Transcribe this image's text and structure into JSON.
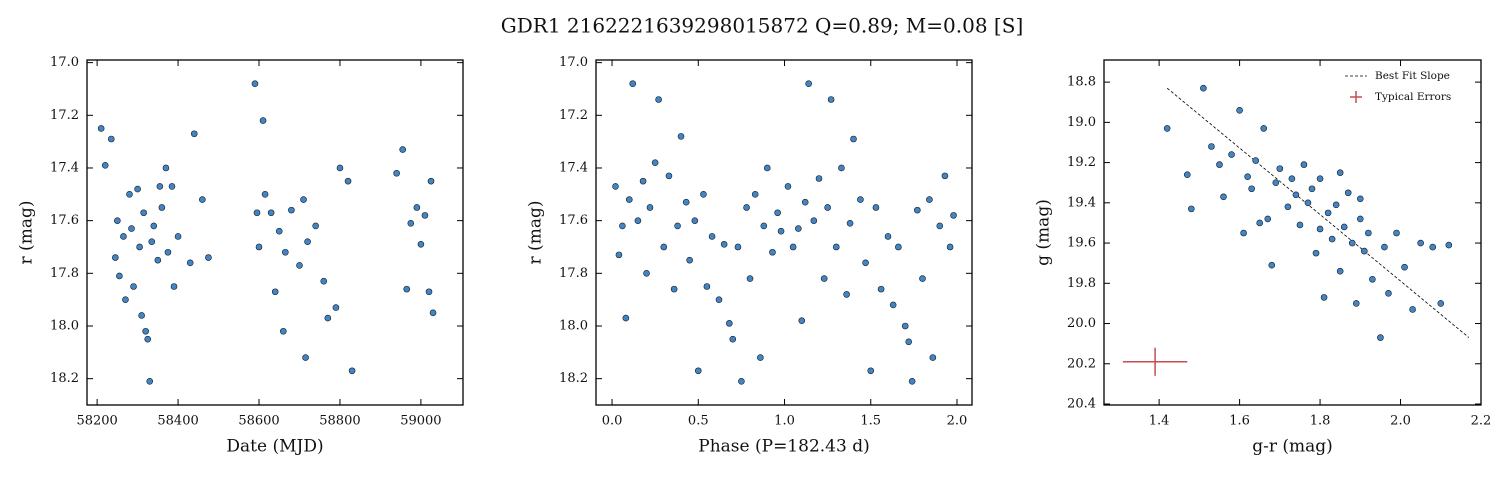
{
  "title": "GDR1 2162221639298015872  Q=0.89; M=0.08 [S]",
  "chart_data": [
    {
      "type": "scatter",
      "xlabel": "Date (MJD)",
      "ylabel": "r (mag)",
      "xlim": [
        58175,
        59104
      ],
      "ylim": [
        18.3,
        16.99
      ],
      "inverted_y": true,
      "xticks": [
        58200,
        58400,
        58600,
        58800,
        59000
      ],
      "yticks": [
        {
          "value": 17,
          "label": "17.0"
        },
        17.2,
        17.4,
        17.6,
        17.8,
        {
          "value": 18,
          "label": "18.0"
        },
        18.2
      ],
      "series": [
        {
          "color": "#3f85c8",
          "x": [
            58210,
            58220,
            58235,
            58245,
            58250,
            58255,
            58265,
            58270,
            58280,
            58285,
            58290,
            58300,
            58305,
            58310,
            58315,
            58320,
            58325,
            58330,
            58335,
            58340,
            58350,
            58355,
            58360,
            58370,
            58375,
            58385,
            58390,
            58400,
            58430,
            58440,
            58460,
            58475,
            58590,
            58595,
            58600,
            58610,
            58615,
            58630,
            58640,
            58650,
            58660,
            58665,
            58680,
            58700,
            58710,
            58715,
            58720,
            58740,
            58760,
            58770,
            58790,
            58800,
            58820,
            58830,
            58940,
            58955,
            58965,
            58975,
            58990,
            59000,
            59010,
            59020,
            59030,
            59025
          ],
          "values": [
            17.25,
            17.39,
            17.29,
            17.74,
            17.6,
            17.81,
            17.66,
            17.9,
            17.5,
            17.63,
            17.85,
            17.48,
            17.7,
            17.96,
            17.57,
            18.02,
            18.05,
            18.21,
            17.68,
            17.62,
            17.75,
            17.47,
            17.55,
            17.4,
            17.72,
            17.47,
            17.85,
            17.66,
            17.76,
            17.27,
            17.52,
            17.74,
            17.08,
            17.57,
            17.7,
            17.22,
            17.5,
            17.57,
            17.87,
            17.64,
            18.02,
            17.72,
            17.56,
            17.77,
            17.52,
            18.12,
            17.68,
            17.62,
            17.83,
            17.97,
            17.93,
            17.4,
            17.45,
            18.17,
            17.42,
            17.33,
            17.86,
            17.61,
            17.55,
            17.69,
            17.58,
            17.87,
            17.95,
            17.45
          ]
        }
      ]
    },
    {
      "type": "scatter",
      "xlabel": "Phase (P=182.43 d)",
      "ylabel": "r (mag)",
      "xlim": [
        -0.093,
        2.087
      ],
      "ylim": [
        18.3,
        16.99
      ],
      "inverted_y": true,
      "xticks": [
        {
          "value": 0,
          "label": "0.0"
        },
        0.5,
        {
          "value": 1,
          "label": "1.0"
        },
        1.5,
        {
          "value": 2,
          "label": "2.0"
        }
      ],
      "yticks": [
        {
          "value": 17,
          "label": "17.0"
        },
        17.2,
        17.4,
        17.6,
        17.8,
        {
          "value": 18,
          "label": "18.0"
        },
        18.2
      ],
      "series": [
        {
          "color": "#3f85c8",
          "x": [
            0.02,
            0.04,
            0.06,
            0.08,
            0.1,
            0.12,
            0.15,
            0.18,
            0.2,
            0.22,
            0.25,
            0.27,
            0.3,
            0.33,
            0.36,
            0.38,
            0.4,
            0.43,
            0.45,
            0.48,
            0.5,
            0.53,
            0.55,
            0.58,
            0.62,
            0.65,
            0.68,
            0.7,
            0.73,
            0.75,
            0.78,
            0.8,
            0.83,
            0.86,
            0.88,
            0.9,
            0.93,
            0.96,
            0.98,
            1.02,
            1.05,
            1.08,
            1.1,
            1.12,
            1.14,
            1.17,
            1.2,
            1.23,
            1.25,
            1.27,
            1.3,
            1.33,
            1.36,
            1.38,
            1.4,
            1.44,
            1.47,
            1.5,
            1.53,
            1.56,
            1.6,
            1.63,
            1.66,
            1.7,
            1.72,
            1.74,
            1.77,
            1.8,
            1.84,
            1.86,
            1.9,
            1.93,
            1.96,
            1.98
          ],
          "values": [
            17.47,
            17.73,
            17.62,
            17.97,
            17.52,
            17.08,
            17.6,
            17.45,
            17.8,
            17.55,
            17.38,
            17.14,
            17.7,
            17.43,
            17.86,
            17.62,
            17.28,
            17.53,
            17.75,
            17.6,
            18.17,
            17.5,
            17.85,
            17.66,
            17.9,
            17.69,
            17.99,
            18.05,
            17.7,
            18.21,
            17.55,
            17.82,
            17.5,
            18.12,
            17.62,
            17.4,
            17.72,
            17.57,
            17.64,
            17.47,
            17.7,
            17.63,
            17.98,
            17.53,
            17.08,
            17.6,
            17.44,
            17.82,
            17.55,
            17.14,
            17.7,
            17.4,
            17.88,
            17.61,
            17.29,
            17.52,
            17.76,
            18.17,
            17.55,
            17.86,
            17.66,
            17.92,
            17.7,
            18.0,
            18.06,
            18.21,
            17.56,
            17.82,
            17.52,
            18.12,
            17.62,
            17.43,
            17.7,
            17.58
          ]
        }
      ]
    },
    {
      "type": "scatter",
      "xlabel": "g-r (mag)",
      "ylabel": "g (mag)",
      "xlim": [
        1.263,
        2.2
      ],
      "ylim": [
        20.405,
        18.69
      ],
      "inverted_y": true,
      "xticks": [
        1.4,
        1.6,
        1.8,
        {
          "value": 2,
          "label": "2.0"
        },
        2.2
      ],
      "yticks": [
        18.8,
        {
          "value": 19,
          "label": "19.0"
        },
        19.2,
        19.4,
        19.6,
        19.8,
        {
          "value": 20,
          "label": "20.0"
        },
        20.2,
        20.4
      ],
      "legend": "upper right",
      "series": [
        {
          "color": "#3f85c8",
          "x": [
            1.42,
            1.47,
            1.48,
            1.51,
            1.53,
            1.55,
            1.56,
            1.58,
            1.6,
            1.61,
            1.62,
            1.63,
            1.64,
            1.65,
            1.66,
            1.67,
            1.68,
            1.69,
            1.7,
            1.72,
            1.73,
            1.74,
            1.75,
            1.76,
            1.77,
            1.78,
            1.79,
            1.8,
            1.81,
            1.82,
            1.83,
            1.84,
            1.85,
            1.86,
            1.87,
            1.88,
            1.89,
            1.9,
            1.91,
            1.92,
            1.93,
            1.95,
            1.96,
            1.97,
            1.99,
            2.01,
            2.03,
            2.05,
            2.08,
            2.1,
            2.12,
            1.85,
            1.9,
            1.8
          ],
          "values": [
            19.03,
            19.26,
            19.43,
            18.83,
            19.12,
            19.21,
            19.37,
            19.16,
            18.94,
            19.55,
            19.27,
            19.33,
            19.19,
            19.5,
            19.03,
            19.48,
            19.71,
            19.3,
            19.23,
            19.42,
            19.28,
            19.36,
            19.51,
            19.21,
            19.4,
            19.33,
            19.65,
            19.28,
            19.87,
            19.45,
            19.58,
            19.41,
            19.74,
            19.52,
            19.35,
            19.6,
            19.9,
            19.48,
            19.64,
            19.55,
            19.78,
            20.07,
            19.62,
            19.85,
            19.55,
            19.72,
            19.93,
            19.6,
            19.62,
            19.9,
            19.61,
            19.25,
            19.38,
            19.53
          ]
        }
      ],
      "fit": {
        "name": "Best Fit Slope",
        "color": "#000000",
        "x": [
          1.42,
          2.17
        ],
        "values": [
          18.83,
          20.07
        ]
      },
      "error_bar": {
        "name": "Typical Errors",
        "color": "#c44e52",
        "x": 1.39,
        "value": 20.19,
        "xerr": 0.08,
        "yerr": 0.07
      }
    }
  ]
}
